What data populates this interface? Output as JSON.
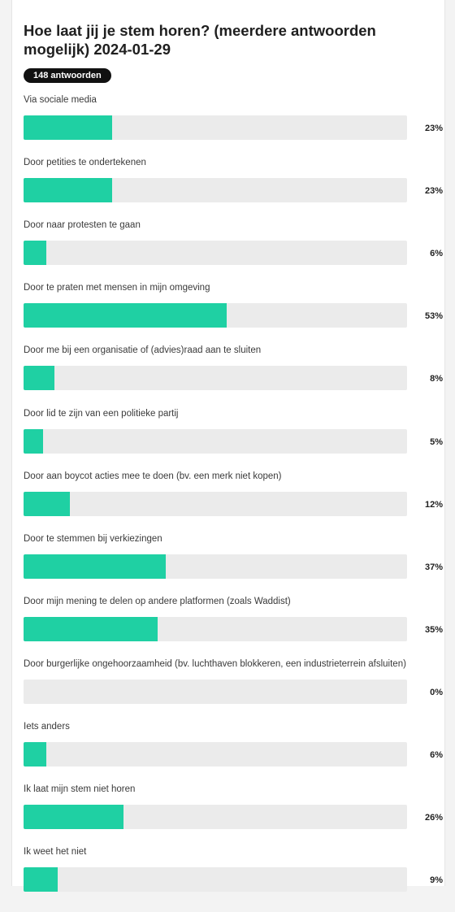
{
  "poll": {
    "title": "Hoe laat jij je stem horen? (meerdere antwoorden mogelijk) 2024-01-29",
    "responses_badge": "148 antwoorden"
  },
  "colors": {
    "bar_fill": "#1fd0a3",
    "bar_track": "#ebebeb",
    "badge_bg": "#111111"
  },
  "chart_data": {
    "type": "bar",
    "orientation": "horizontal",
    "title": "Hoe laat jij je stem horen? (meerdere antwoorden mogelijk) 2024-01-29",
    "xlim": [
      0,
      100
    ],
    "categories": [
      "Via sociale media",
      "Door petities te ondertekenen",
      "Door naar protesten te gaan",
      "Door te praten met mensen in mijn omgeving",
      "Door me bij een organisatie of (advies)raad aan te sluiten",
      "Door lid te zijn van een politieke partij",
      "Door aan boycot acties mee te doen (bv. een merk niet kopen)",
      "Door te stemmen bij verkiezingen",
      "Door mijn mening te delen op andere platformen (zoals Waddist)",
      "Door burgerlijke ongehoorzaamheid (bv. luchthaven blokkeren, een industrieterrein afsluiten)",
      "Iets anders",
      "Ik laat mijn stem niet horen",
      "Ik weet het niet"
    ],
    "values": [
      23,
      23,
      6,
      53,
      8,
      5,
      12,
      37,
      35,
      0,
      6,
      26,
      9
    ],
    "value_labels": [
      "23%",
      "23%",
      "6%",
      "53%",
      "8%",
      "5%",
      "12%",
      "37%",
      "35%",
      "0%",
      "6%",
      "26%",
      "9%"
    ]
  }
}
